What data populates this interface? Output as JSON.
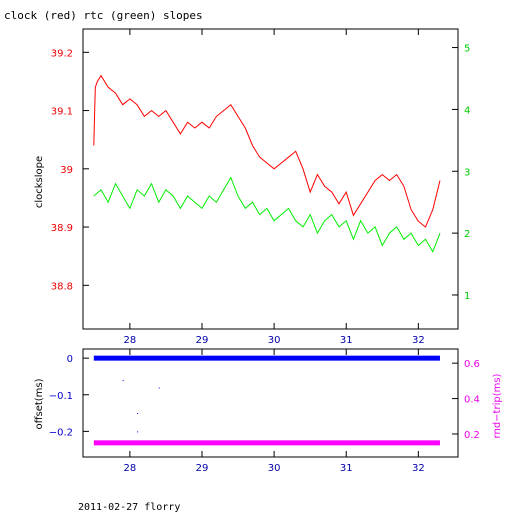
{
  "chart_data": [
    {
      "type": "line",
      "title": "clock (red) rtc (green) slopes",
      "ylabel": "clockslope",
      "xlim": [
        27.35,
        32.55
      ],
      "ylim": [
        38.725,
        39.24
      ],
      "y2lim": [
        0.45,
        5.3
      ],
      "x_ticks": [
        28,
        29,
        30,
        31,
        32
      ],
      "y_ticks": [
        38.8,
        38.9,
        39,
        39.1,
        39.2
      ],
      "y_tick_labels": [
        "38.8",
        "38.9",
        "39",
        "39.1",
        "39.2"
      ],
      "y2_ticks": [
        1,
        2,
        3,
        4,
        5
      ],
      "colors": {
        "clock": "#ff0000",
        "rtc": "#00ee00",
        "axis_left": "#ee0000",
        "axis_right": "#00cc00",
        "x_ticks": "#0000aa"
      },
      "series": [
        {
          "axis": "left",
          "x": [
            27.5,
            27.52,
            27.55,
            27.6,
            27.7,
            27.8,
            27.9,
            28.0,
            28.1,
            28.2,
            28.3,
            28.4,
            28.5,
            28.6,
            28.7,
            28.8,
            28.9,
            29.0,
            29.1,
            29.2,
            29.3,
            29.4,
            29.5,
            29.6,
            29.7,
            29.8,
            29.9,
            30.0,
            30.1,
            30.2,
            30.3,
            30.4,
            30.5,
            30.6,
            30.7,
            30.8,
            30.9,
            31.0,
            31.1,
            31.2,
            31.3,
            31.4,
            31.5,
            31.6,
            31.7,
            31.8,
            31.9,
            32.0,
            32.1,
            32.2,
            32.3
          ],
          "y": [
            39.04,
            39.14,
            39.15,
            39.16,
            39.14,
            39.13,
            39.11,
            39.12,
            39.11,
            39.09,
            39.1,
            39.09,
            39.1,
            39.08,
            39.06,
            39.08,
            39.07,
            39.08,
            39.07,
            39.09,
            39.1,
            39.11,
            39.09,
            39.07,
            39.04,
            39.02,
            39.01,
            39.0,
            39.01,
            39.02,
            39.03,
            39.0,
            38.96,
            38.99,
            38.97,
            38.96,
            38.94,
            38.96,
            38.92,
            38.94,
            38.96,
            38.98,
            38.99,
            38.98,
            38.99,
            38.97,
            38.93,
            38.91,
            38.9,
            38.93,
            38.98
          ]
        },
        {
          "axis": "right",
          "x": [
            27.5,
            27.6,
            27.7,
            27.8,
            27.9,
            28.0,
            28.1,
            28.2,
            28.3,
            28.4,
            28.5,
            28.6,
            28.7,
            28.8,
            28.9,
            29.0,
            29.1,
            29.2,
            29.3,
            29.4,
            29.5,
            29.6,
            29.7,
            29.8,
            29.9,
            30.0,
            30.1,
            30.2,
            30.3,
            30.4,
            30.5,
            30.6,
            30.7,
            30.8,
            30.9,
            31.0,
            31.1,
            31.2,
            31.3,
            31.4,
            31.5,
            31.6,
            31.7,
            31.8,
            31.9,
            32.0,
            32.1,
            32.2,
            32.3
          ],
          "y": [
            2.6,
            2.7,
            2.5,
            2.8,
            2.6,
            2.4,
            2.7,
            2.6,
            2.8,
            2.5,
            2.7,
            2.6,
            2.4,
            2.6,
            2.5,
            2.4,
            2.6,
            2.5,
            2.7,
            2.9,
            2.6,
            2.4,
            2.5,
            2.3,
            2.4,
            2.2,
            2.3,
            2.4,
            2.2,
            2.1,
            2.3,
            2.0,
            2.2,
            2.3,
            2.1,
            2.2,
            1.9,
            2.2,
            2.0,
            2.1,
            1.8,
            2.0,
            2.1,
            1.9,
            2.0,
            1.8,
            1.9,
            1.7,
            2.0
          ]
        }
      ]
    },
    {
      "type": "scatter",
      "ylabel": "offset(ms)",
      "y2label": "rnd−trip(ms)",
      "xlim": [
        27.35,
        32.55
      ],
      "ylim": [
        -0.27,
        0.025
      ],
      "y2lim": [
        0.07,
        0.68
      ],
      "x_ticks": [
        28,
        29,
        30,
        31,
        32
      ],
      "y_ticks": [
        0,
        -0.1,
        -0.2
      ],
      "y_tick_labels": [
        "0",
        "−0.1",
        "−0.2"
      ],
      "y2_ticks": [
        0.2,
        0.4,
        0.6
      ],
      "y2_tick_labels": [
        "0.2",
        "0.4",
        "0.6"
      ],
      "colors": {
        "offset": "#0000ff",
        "rndtrip": "#ff00ff",
        "axis_left": "#0000cc",
        "axis_right": "#ee00ee",
        "x_ticks": "#0000aa"
      },
      "series": [
        {
          "axis": "left",
          "x_range": [
            27.5,
            32.3
          ],
          "y_level": 0.0,
          "outliers": [
            [
              27.9,
              -0.06
            ],
            [
              28.1,
              -0.15
            ],
            [
              28.1,
              -0.2
            ],
            [
              28.4,
              -0.08
            ]
          ]
        },
        {
          "axis": "right",
          "x_range": [
            27.5,
            32.3
          ],
          "y_level": 0.15
        }
      ]
    }
  ],
  "footer": "2011-02-27 florry"
}
